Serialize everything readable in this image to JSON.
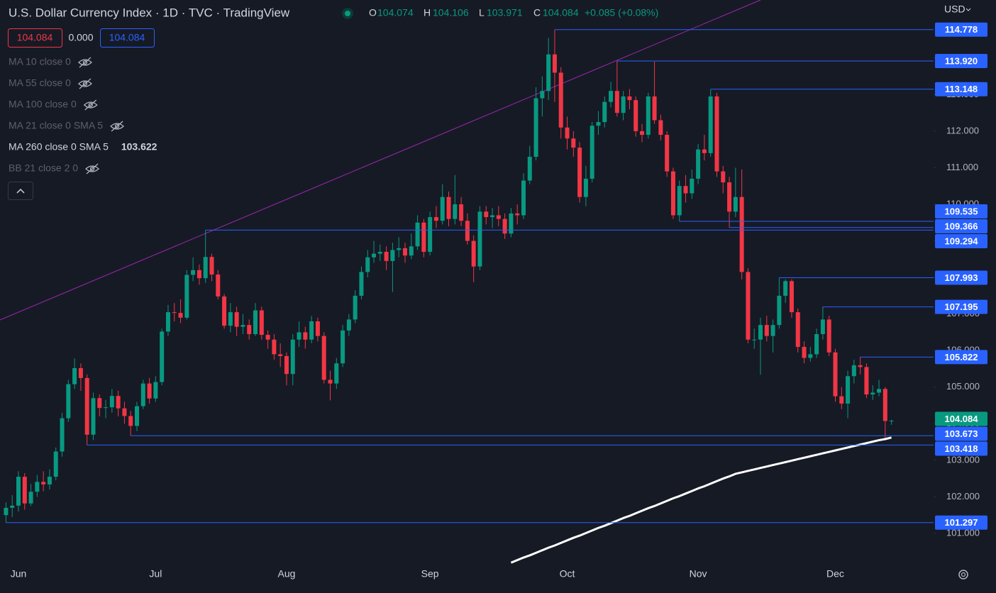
{
  "header": {
    "title": "U.S. Dollar Currency Index · 1D · TVC · TradingView",
    "ohlc_labels": [
      "O",
      "H",
      "L",
      "C"
    ],
    "change": "+0.085 (+0.08%)",
    "spread": "0.000",
    "currency": "USD"
  },
  "indicators": [
    {
      "label": "MA 10 close 0",
      "hidden": true
    },
    {
      "label": "MA 55 close 0",
      "hidden": true
    },
    {
      "label": "MA 100 close 0",
      "hidden": true
    },
    {
      "label": "MA 21 close 0 SMA 5",
      "hidden": true
    },
    {
      "label": "MA 260 close 0 SMA 5",
      "hidden": false
    },
    {
      "label": "BB 21 close 2 0",
      "hidden": true
    }
  ],
  "chart_data": {
    "type": "candlestick",
    "categories": [
      null,
      null,
      "Jun",
      null,
      null,
      null,
      null,
      null,
      null,
      null,
      null,
      null,
      null,
      null,
      null,
      null,
      null,
      null,
      null,
      null,
      null,
      null,
      null,
      null,
      "Jul",
      null,
      null,
      null,
      null,
      null,
      null,
      null,
      null,
      null,
      null,
      null,
      null,
      null,
      null,
      null,
      null,
      null,
      null,
      null,
      null,
      "Aug",
      null,
      null,
      null,
      null,
      null,
      null,
      null,
      null,
      null,
      null,
      null,
      null,
      null,
      null,
      null,
      null,
      null,
      null,
      null,
      null,
      null,
      null,
      "Sep",
      null,
      null,
      null,
      null,
      null,
      null,
      null,
      null,
      null,
      null,
      null,
      null,
      null,
      null,
      null,
      null,
      null,
      null,
      null,
      null,
      null,
      "Oct",
      null,
      null,
      null,
      null,
      null,
      null,
      null,
      null,
      null,
      null,
      null,
      null,
      null,
      null,
      null,
      null,
      null,
      null,
      null,
      null,
      "Nov",
      null,
      null,
      null,
      null,
      null,
      null,
      null,
      null,
      null,
      null,
      null,
      null,
      null,
      null,
      null,
      null,
      null,
      null,
      null,
      null,
      null,
      "Dec",
      null,
      null,
      null,
      null,
      null,
      null,
      null,
      null,
      null
    ],
    "open": [
      101.5,
      101.7,
      101.76,
      102.55,
      101.82,
      102.14,
      102.41,
      102.34,
      102.55,
      103.24,
      104.15,
      105.08,
      105.52,
      105.25,
      103.7,
      104.7,
      104.43,
      104.45,
      104.76,
      104.42,
      104.21,
      103.94,
      104.48,
      105.1,
      104.69,
      105.14,
      106.52,
      107.05,
      107.03,
      106.9,
      108.07,
      108.2,
      107.98,
      108.56,
      108.08,
      107.48,
      106.68,
      107.05,
      106.65,
      106.7,
      106.45,
      107.1,
      106.43,
      106.3,
      105.9,
      105.85,
      105.36,
      106.3,
      106.5,
      106.3,
      106.8,
      106.4,
      105.2,
      105.1,
      105.65,
      106.55,
      106.85,
      107.5,
      108.15,
      108.55,
      108.65,
      108.7,
      108.45,
      108.75,
      108.8,
      108.6,
      108.85,
      109.5,
      108.7,
      109.65,
      109.55,
      110.2,
      109.6,
      110.0,
      109.55,
      109.0,
      108.3,
      109.8,
      109.65,
      109.7,
      109.6,
      109.2,
      109.75,
      109.7,
      110.65,
      111.3,
      112.9,
      113.1,
      114.1,
      113.6,
      112.1,
      111.8,
      111.55,
      110.2,
      110.7,
      112.15,
      112.25,
      112.8,
      113.1,
      112.5,
      112.95,
      112.85,
      112.0,
      111.9,
      112.95,
      112.3,
      111.9,
      110.9,
      109.7,
      110.5,
      110.3,
      110.7,
      111.5,
      111.4,
      112.95,
      110.9,
      110.6,
      109.8,
      110.2,
      108.15,
      106.3,
      106.3,
      106.7,
      106.4,
      106.7,
      107.5,
      107.9,
      107.05,
      106.1,
      105.8,
      105.9,
      106.45,
      106.85,
      105.95,
      104.75,
      104.55,
      105.3,
      105.6,
      105.55,
      104.8,
      104.85,
      104.95,
      104.074
    ],
    "high": [
      101.85,
      102.05,
      102.7,
      102.65,
      102.35,
      102.6,
      102.7,
      102.75,
      103.35,
      104.3,
      105.2,
      105.79,
      105.65,
      105.35,
      104.85,
      104.8,
      104.65,
      104.95,
      104.9,
      104.6,
      104.35,
      104.6,
      105.2,
      105.25,
      105.3,
      106.6,
      107.25,
      107.3,
      107.4,
      108.2,
      108.55,
      108.35,
      109.294,
      108.65,
      108.2,
      107.55,
      107.3,
      107.2,
      107.0,
      106.85,
      107.3,
      107.2,
      106.55,
      106.45,
      106.2,
      105.95,
      106.45,
      106.8,
      106.65,
      106.95,
      106.9,
      106.5,
      105.45,
      105.8,
      106.7,
      107.0,
      107.65,
      108.3,
      108.75,
      109.0,
      108.9,
      108.85,
      108.95,
      109.1,
      108.95,
      109.2,
      109.7,
      109.6,
      109.8,
      109.95,
      110.55,
      110.35,
      110.8,
      110.2,
      109.75,
      109.15,
      109.95,
      109.95,
      109.9,
      109.95,
      109.75,
      109.9,
      110.0,
      110.85,
      111.6,
      113.2,
      113.5,
      114.55,
      114.778,
      113.75,
      112.4,
      112.0,
      111.7,
      111.05,
      112.25,
      112.55,
      112.95,
      113.35,
      113.92,
      113.1,
      113.15,
      112.95,
      112.2,
      113.05,
      113.9,
      112.45,
      112.0,
      111.0,
      110.65,
      110.8,
      110.95,
      111.65,
      111.9,
      113.148,
      113.05,
      111.05,
      110.75,
      111.0,
      110.95,
      108.25,
      106.6,
      106.9,
      106.95,
      106.85,
      107.993,
      107.95,
      107.95,
      107.15,
      106.25,
      106.1,
      106.6,
      107.195,
      106.95,
      106.05,
      105.0,
      105.45,
      105.75,
      105.822,
      105.65,
      105.05,
      105.2,
      105.0,
      104.106
    ],
    "low": [
      101.297,
      101.45,
      101.6,
      101.65,
      101.75,
      102.0,
      102.15,
      102.2,
      102.45,
      103.1,
      104.05,
      104.95,
      104.9,
      103.418,
      103.55,
      104.2,
      104.15,
      104.3,
      104.2,
      104.0,
      103.673,
      103.8,
      104.4,
      104.55,
      104.6,
      105.05,
      106.4,
      106.8,
      106.75,
      106.85,
      107.9,
      107.8,
      107.85,
      107.9,
      107.4,
      106.6,
      106.5,
      106.4,
      106.45,
      106.3,
      106.4,
      106.3,
      106.05,
      105.75,
      105.55,
      105.05,
      105.05,
      106.1,
      106.05,
      106.2,
      106.25,
      105.1,
      104.64,
      104.95,
      105.55,
      106.4,
      106.75,
      107.4,
      108.0,
      108.4,
      108.45,
      108.2,
      107.6,
      108.55,
      108.4,
      108.5,
      108.75,
      108.55,
      108.6,
      109.35,
      109.45,
      109.4,
      109.45,
      109.4,
      108.9,
      107.87,
      108.2,
      109.45,
      109.35,
      109.4,
      109.05,
      109.1,
      109.45,
      109.6,
      110.55,
      111.2,
      112.4,
      112.85,
      112.8,
      111.8,
      111.5,
      111.3,
      110.05,
      109.95,
      110.6,
      111.9,
      112.1,
      112.65,
      112.4,
      112.3,
      112.6,
      111.85,
      111.7,
      111.8,
      112.2,
      111.75,
      110.75,
      109.6,
      109.535,
      110.05,
      110.15,
      110.55,
      111.2,
      111.3,
      110.75,
      110.3,
      109.366,
      109.65,
      107.95,
      106.2,
      106.05,
      105.34,
      106.25,
      105.95,
      106.6,
      107.3,
      106.9,
      105.95,
      105.65,
      105.7,
      105.8,
      106.3,
      105.85,
      104.6,
      104.4,
      104.15,
      105.1,
      105.35,
      104.7,
      104.65,
      104.75,
      103.6,
      103.971
    ],
    "close": [
      101.7,
      101.76,
      102.55,
      101.82,
      102.14,
      102.41,
      102.34,
      102.55,
      103.24,
      104.15,
      105.08,
      105.52,
      105.25,
      103.7,
      104.7,
      104.43,
      104.45,
      104.76,
      104.42,
      104.21,
      103.94,
      104.48,
      105.1,
      104.69,
      105.14,
      106.52,
      107.05,
      107.03,
      106.9,
      108.07,
      108.2,
      107.98,
      108.56,
      108.08,
      107.48,
      106.68,
      107.05,
      106.65,
      106.7,
      106.45,
      107.1,
      106.43,
      106.3,
      105.9,
      105.85,
      105.36,
      106.3,
      106.5,
      106.3,
      106.8,
      106.4,
      105.2,
      105.1,
      105.65,
      106.55,
      106.85,
      107.5,
      108.15,
      108.55,
      108.65,
      108.7,
      108.45,
      108.75,
      108.8,
      108.6,
      108.85,
      109.5,
      108.7,
      109.65,
      109.55,
      110.2,
      109.6,
      110.0,
      109.55,
      109.0,
      108.3,
      109.8,
      109.65,
      109.7,
      109.6,
      109.2,
      109.75,
      109.7,
      110.65,
      111.3,
      112.9,
      113.1,
      114.1,
      113.6,
      112.1,
      111.8,
      111.55,
      110.2,
      110.7,
      112.15,
      112.25,
      112.8,
      113.1,
      112.5,
      112.95,
      112.85,
      112.0,
      111.9,
      112.95,
      112.3,
      111.9,
      110.9,
      109.7,
      110.5,
      110.3,
      110.7,
      111.5,
      111.4,
      112.95,
      110.9,
      110.6,
      109.8,
      110.2,
      108.15,
      106.3,
      106.3,
      106.7,
      106.4,
      106.7,
      107.5,
      107.9,
      107.05,
      106.1,
      105.8,
      105.9,
      106.45,
      106.85,
      105.95,
      104.75,
      104.55,
      105.3,
      105.6,
      105.55,
      104.8,
      104.85,
      104.95,
      104.074,
      104.084
    ],
    "up_color": "#089981",
    "down_color": "#f23645",
    "ma": {
      "color": "#ffffff",
      "values": [
        null,
        null,
        null,
        null,
        null,
        null,
        null,
        null,
        null,
        null,
        null,
        null,
        null,
        null,
        null,
        null,
        null,
        null,
        null,
        null,
        null,
        null,
        null,
        null,
        null,
        null,
        null,
        null,
        null,
        null,
        null,
        null,
        null,
        null,
        null,
        null,
        null,
        null,
        null,
        null,
        null,
        null,
        null,
        null,
        null,
        null,
        null,
        null,
        null,
        null,
        null,
        null,
        null,
        null,
        null,
        null,
        null,
        null,
        null,
        null,
        null,
        null,
        null,
        null,
        null,
        null,
        null,
        null,
        null,
        null,
        null,
        null,
        null,
        null,
        null,
        null,
        null,
        null,
        null,
        null,
        null,
        100.2,
        100.27,
        100.34,
        100.4,
        100.47,
        100.54,
        100.61,
        100.67,
        100.74,
        100.81,
        100.88,
        100.94,
        101.01,
        101.08,
        101.15,
        101.21,
        101.28,
        101.35,
        101.42,
        101.48,
        101.55,
        101.62,
        101.69,
        101.75,
        101.82,
        101.89,
        101.96,
        102.02,
        102.09,
        102.16,
        102.23,
        102.29,
        102.36,
        102.43,
        102.5,
        102.56,
        102.63,
        102.67,
        102.71,
        102.75,
        102.79,
        102.83,
        102.87,
        102.91,
        102.95,
        102.99,
        103.03,
        103.07,
        103.11,
        103.15,
        103.19,
        103.23,
        103.27,
        103.31,
        103.35,
        103.39,
        103.43,
        103.47,
        103.51,
        103.55,
        103.58,
        103.622
      ]
    },
    "levels": {
      "color": "#2962ff",
      "values": [
        114.778,
        {
          "value": 113.92,
          "label": "113.920"
        },
        113.148,
        109.535,
        109.366,
        109.294,
        107.993,
        107.195,
        105.822,
        103.673,
        103.418,
        101.297
      ]
    },
    "ylim": [
      100.166,
      115.587
    ],
    "yticks": [
      {
        "value": 101,
        "label": "101.000"
      },
      {
        "value": 102,
        "label": "102.000"
      },
      {
        "value": 103,
        "label": "103.000"
      },
      {
        "value": 104,
        "label": "104.000"
      },
      {
        "value": 105,
        "label": "105.000"
      },
      {
        "value": 106,
        "label": "106.000"
      },
      {
        "value": 107,
        "label": "107.000"
      },
      {
        "value": 108,
        "label": "108.000"
      },
      {
        "value": 109,
        "label": "109.000"
      },
      {
        "value": 110,
        "label": "110.000"
      },
      {
        "value": 111,
        "label": "111.000"
      },
      {
        "value": 112,
        "label": "112.000"
      },
      {
        "value": 113,
        "label": "113.000"
      },
      {
        "value": 114,
        "label": "114.000"
      }
    ]
  }
}
